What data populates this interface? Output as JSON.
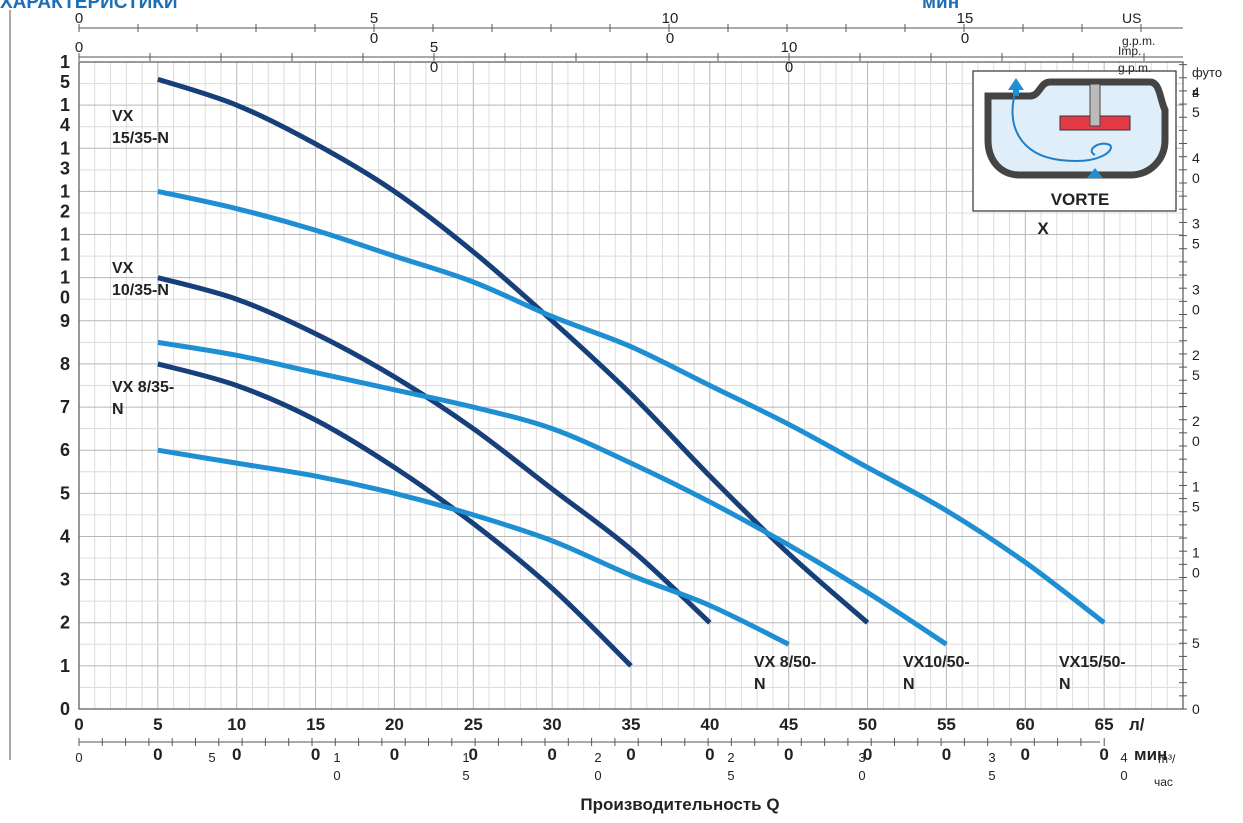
{
  "header": {
    "title": "ХАРАКТЕРИСТИКИ",
    "title_right": "мин"
  },
  "axes": {
    "x_unit": "л/мин",
    "x_unit_top_part": "л/",
    "x_unit_bottom_part": "мин",
    "x_label": "Производительность Q",
    "us_gpm": "US g.p.m.",
    "imp_gpm": "Imp. g.p.m.",
    "m3h": "m³/час",
    "m3h_top": "m³/",
    "m3h_bottom": "час",
    "feet": "футов",
    "feet_top": "футо",
    "feet_bottom": "в"
  },
  "inset": {
    "label_line1": "VORTE",
    "label_line2": "X"
  },
  "chart_data": {
    "type": "line",
    "title": "ХАРАКТЕРИСТИКИ",
    "xlabel": "Производительность Q",
    "ylabel": "",
    "xlim": [
      0,
      70
    ],
    "ylim": [
      0,
      15
    ],
    "x_ticks_lmin": [
      "0",
      "5",
      "10",
      "15",
      "20",
      "25",
      "30",
      "35",
      "40",
      "45",
      "50",
      "55",
      "60",
      "65"
    ],
    "x_ticks_lmin_bottom": [
      "",
      "0",
      "0",
      "0",
      "0",
      "0",
      "0",
      "0",
      "0",
      "0",
      "0",
      "0",
      "0",
      "0"
    ],
    "y_ticks_m": [
      "0",
      "1",
      "2",
      "3",
      "4",
      "5",
      "6",
      "7",
      "8",
      "9",
      "1\n0",
      "1\n1",
      "1\n2",
      "1\n3",
      "1\n4",
      "1\n5"
    ],
    "right_ticks_feet": [
      "0",
      "5",
      "1\n0",
      "1\n5",
      "2\n0",
      "2\n5",
      "3\n0",
      "3\n5",
      "4\n0",
      "4\n5"
    ],
    "top_ticks_us_gpm": [
      "0",
      "5\n0",
      "10\n0",
      "15\n0"
    ],
    "top_ticks_imp_gpm": [
      "0",
      "5\n0",
      "10\n0"
    ],
    "bottom_ticks_m3h": [
      "0",
      "5",
      "1\n0",
      "1\n5",
      "2\n0",
      "2\n5",
      "3\n0",
      "3\n5",
      "4\n0"
    ],
    "series": [
      {
        "name": "VX 15/35-N",
        "label_lines": [
          "VX",
          "15/35-N"
        ],
        "color": "#173f7a",
        "x": [
          5,
          10,
          15,
          20,
          25,
          30,
          35,
          40,
          45,
          50
        ],
        "y": [
          14.6,
          14.0,
          13.1,
          12.0,
          10.6,
          9.0,
          7.3,
          5.4,
          3.6,
          2.0
        ]
      },
      {
        "name": "VX 10/35-N",
        "label_lines": [
          "VX",
          "10/35-N"
        ],
        "color": "#173f7a",
        "x": [
          5,
          10,
          15,
          20,
          25,
          30,
          35,
          40
        ],
        "y": [
          10.0,
          9.5,
          8.7,
          7.7,
          6.5,
          5.1,
          3.7,
          2.0
        ]
      },
      {
        "name": "VX 8/35-N",
        "label_lines": [
          "VX 8/35-",
          "N"
        ],
        "color": "#173f7a",
        "x": [
          5,
          10,
          15,
          20,
          25,
          30,
          35
        ],
        "y": [
          8.0,
          7.5,
          6.7,
          5.6,
          4.3,
          2.8,
          1.0
        ]
      },
      {
        "name": "VX15/50-N",
        "label_lines": [
          "VX15/50-",
          "N"
        ],
        "color": "#1e8fd2",
        "x": [
          5,
          10,
          15,
          20,
          25,
          30,
          35,
          40,
          45,
          50,
          55,
          60,
          65
        ],
        "y": [
          12.0,
          11.6,
          11.1,
          10.5,
          9.9,
          9.1,
          8.4,
          7.5,
          6.6,
          5.6,
          4.6,
          3.4,
          2.0
        ]
      },
      {
        "name": "VX10/50-N",
        "label_lines": [
          "VX10/50-",
          "N"
        ],
        "color": "#1e8fd2",
        "x": [
          5,
          10,
          15,
          20,
          25,
          30,
          35,
          40,
          45,
          50,
          55
        ],
        "y": [
          8.5,
          8.2,
          7.8,
          7.4,
          7.0,
          6.5,
          5.7,
          4.8,
          3.8,
          2.7,
          1.5
        ]
      },
      {
        "name": "VX 8/50-N",
        "label_lines": [
          "VX 8/50-",
          "N"
        ],
        "color": "#1e8fd2",
        "x": [
          5,
          10,
          15,
          20,
          25,
          30,
          35,
          40,
          45
        ],
        "y": [
          6.0,
          5.7,
          5.4,
          5.0,
          4.5,
          3.9,
          3.1,
          2.4,
          1.5
        ]
      }
    ],
    "grid": true
  }
}
